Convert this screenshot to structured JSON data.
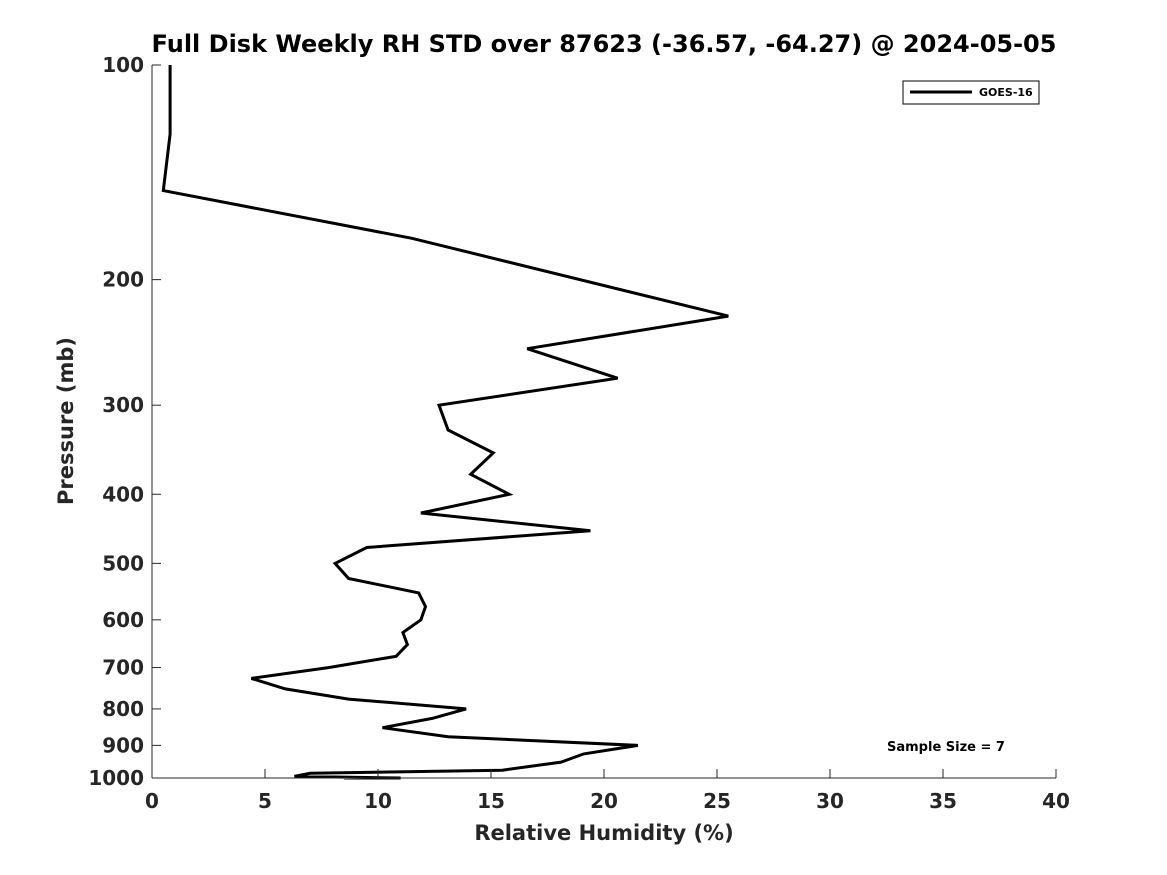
{
  "chart_data": {
    "type": "line",
    "title": "Full Disk Weekly RH STD over 87623 (-36.57, -64.27) @ 2024-05-05",
    "xlabel": "Relative Humidity (%)",
    "ylabel": "Pressure (mb)",
    "xlim": [
      0,
      40
    ],
    "ylim": [
      100,
      1000
    ],
    "y_scale": "log",
    "y_reversed": true,
    "grid": false,
    "legend_position": "top-right",
    "x_ticks": [
      "0",
      "5",
      "10",
      "15",
      "20",
      "25",
      "30",
      "35",
      "40"
    ],
    "y_ticks": [
      "100",
      "200",
      "300",
      "400",
      "500",
      "600",
      "700",
      "800",
      "900",
      "1000"
    ],
    "series": [
      {
        "name": "GOES-16",
        "color": "#000000",
        "points": [
          [
            0.8,
            100
          ],
          [
            0.8,
            125
          ],
          [
            0.5,
            150
          ],
          [
            11.5,
            175
          ],
          [
            25.5,
            225
          ],
          [
            16.6,
            250
          ],
          [
            20.6,
            275
          ],
          [
            12.7,
            300
          ],
          [
            13.1,
            325
          ],
          [
            15.1,
            350
          ],
          [
            14.1,
            375
          ],
          [
            15.8,
            400
          ],
          [
            11.9,
            425
          ],
          [
            19.4,
            450
          ],
          [
            9.5,
            475
          ],
          [
            8.1,
            500
          ],
          [
            8.7,
            525
          ],
          [
            11.8,
            550
          ],
          [
            12.1,
            575
          ],
          [
            11.9,
            600
          ],
          [
            11.1,
            625
          ],
          [
            11.3,
            650
          ],
          [
            10.8,
            675
          ],
          [
            7.8,
            700
          ],
          [
            4.4,
            725
          ],
          [
            5.9,
            750
          ],
          [
            8.7,
            775
          ],
          [
            13.9,
            800
          ],
          [
            12.4,
            825
          ],
          [
            10.2,
            850
          ],
          [
            13.1,
            875
          ],
          [
            21.5,
            900
          ],
          [
            19.1,
            925
          ],
          [
            18.1,
            950
          ],
          [
            15.5,
            975
          ],
          [
            7.0,
            985
          ],
          [
            6.3,
            995
          ],
          [
            11.0,
            1000
          ],
          [
            8.7,
            1000
          ],
          [
            8.5,
            1000
          ],
          [
            10.4,
            1000
          ],
          [
            10.4,
            1000
          ]
        ]
      }
    ],
    "annotation": "Sample Size = 7"
  }
}
